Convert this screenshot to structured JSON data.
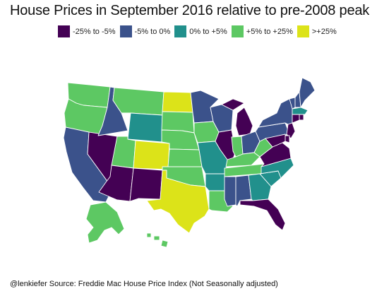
{
  "map": {
    "title": "House Prices in September 2016 relative to pre-2008 peak",
    "legend": [
      {
        "label": "-25% to -5%",
        "color": "#440154"
      },
      {
        "label": "-5% to 0%",
        "color": "#3b528b"
      },
      {
        "label": "0% to +5%",
        "color": "#21908c"
      },
      {
        "label": "+5% to +25%",
        "color": "#5dc863"
      },
      {
        "label": ">+25%",
        "color": "#dce319"
      }
    ],
    "caption": "@lenkiefer Source: Freddie Mac House Price Index (Not Seasonally adjusted)",
    "states": [
      {
        "id": "WA",
        "category": 3
      },
      {
        "id": "OR",
        "category": 3
      },
      {
        "id": "CA",
        "category": 1
      },
      {
        "id": "NV",
        "category": 0
      },
      {
        "id": "ID",
        "category": 1
      },
      {
        "id": "MT",
        "category": 3
      },
      {
        "id": "WY",
        "category": 2
      },
      {
        "id": "UT",
        "category": 3
      },
      {
        "id": "AZ",
        "category": 0
      },
      {
        "id": "CO",
        "category": 4
      },
      {
        "id": "NM",
        "category": 0
      },
      {
        "id": "ND",
        "category": 4
      },
      {
        "id": "SD",
        "category": 3
      },
      {
        "id": "NE",
        "category": 3
      },
      {
        "id": "KS",
        "category": 3
      },
      {
        "id": "OK",
        "category": 3
      },
      {
        "id": "TX",
        "category": 4
      },
      {
        "id": "MN",
        "category": 1
      },
      {
        "id": "IA",
        "category": 3
      },
      {
        "id": "MO",
        "category": 2
      },
      {
        "id": "AR",
        "category": 2
      },
      {
        "id": "LA",
        "category": 3
      },
      {
        "id": "WI",
        "category": 1
      },
      {
        "id": "IL",
        "category": 0
      },
      {
        "id": "MI",
        "category": 0
      },
      {
        "id": "IN",
        "category": 3
      },
      {
        "id": "OH",
        "category": 1
      },
      {
        "id": "KY",
        "category": 3
      },
      {
        "id": "TN",
        "category": 3
      },
      {
        "id": "MS",
        "category": 1
      },
      {
        "id": "AL",
        "category": 1
      },
      {
        "id": "GA",
        "category": 2
      },
      {
        "id": "FL",
        "category": 0
      },
      {
        "id": "SC",
        "category": 2
      },
      {
        "id": "NC",
        "category": 2
      },
      {
        "id": "VA",
        "category": 0
      },
      {
        "id": "WV",
        "category": 3
      },
      {
        "id": "PA",
        "category": 1
      },
      {
        "id": "NY",
        "category": 1
      },
      {
        "id": "VT",
        "category": 1
      },
      {
        "id": "NH",
        "category": 1
      },
      {
        "id": "ME",
        "category": 1
      },
      {
        "id": "MA",
        "category": 2
      },
      {
        "id": "CT",
        "category": 0
      },
      {
        "id": "RI",
        "category": 0
      },
      {
        "id": "NJ",
        "category": 0
      },
      {
        "id": "DE",
        "category": 0
      },
      {
        "id": "MD",
        "category": 0
      },
      {
        "id": "AK",
        "category": 3
      },
      {
        "id": "HI",
        "category": 3
      }
    ]
  }
}
